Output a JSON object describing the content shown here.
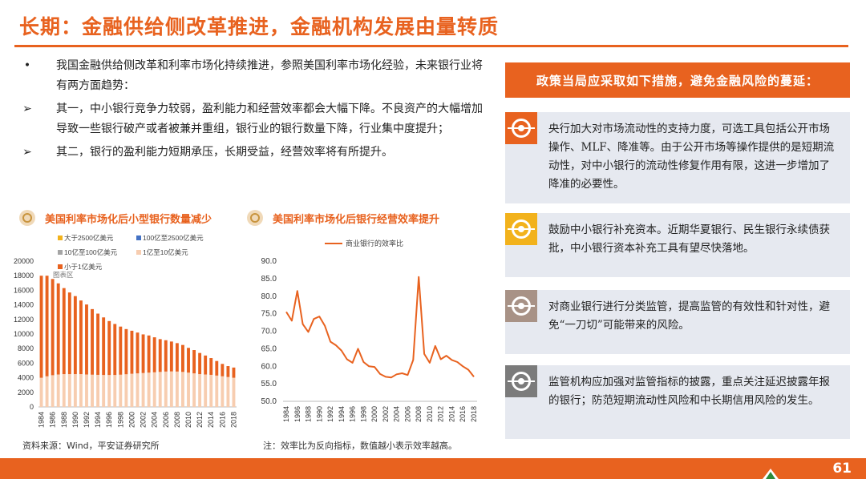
{
  "header": {
    "title": "长期：金融供给侧改革推进，金融机构发展由量转质"
  },
  "intro": [
    {
      "marker": "•",
      "text": "我国金融供给侧改革和利率市场化持续推进，参照美国利率市场化经验，未来银行业将有两方面趋势："
    },
    {
      "marker": "➢",
      "text": "其一，中小银行竞争力较弱，盈利能力和经营效率都会大幅下降。不良资产的大幅增加导致一些银行破产或者被兼并重组，银行业的银行数量下降，行业集中度提升；"
    },
    {
      "marker": "➢",
      "text": "其二，银行的盈利能力短期承压，长期受益，经营效率将有所提升。"
    }
  ],
  "chart1_title": "美国利率市场化后小型银行数量减少",
  "chart2_title": "美国利率市场化后银行经营效率提升",
  "source": "资料来源：Wind，平安证券研究所",
  "note": "注：效率比为反向指标，数值越小表示效率越高。",
  "colors": {
    "accent": "#E8621F",
    "bank_small": "#F7CDB0",
    "bank_mid": "#E8621F",
    "icon_orange": "#E8621F",
    "icon_gold": "#F2B21C",
    "icon_taupe": "#A89286",
    "icon_grey": "#7B7B7B"
  },
  "chart_data": [
    {
      "type": "bar",
      "stacked": true,
      "title": "",
      "ylim": [
        0,
        20000
      ],
      "yticks": [
        0,
        2000,
        4000,
        6000,
        8000,
        10000,
        12000,
        14000,
        16000,
        18000,
        20000
      ],
      "x": [
        1984,
        1985,
        1986,
        1987,
        1988,
        1989,
        1990,
        1991,
        1992,
        1993,
        1994,
        1995,
        1996,
        1997,
        1998,
        1999,
        2000,
        2001,
        2002,
        2003,
        2004,
        2005,
        2006,
        2007,
        2008,
        2009,
        2010,
        2011,
        2012,
        2013,
        2014,
        2015,
        2016,
        2017,
        2018
      ],
      "xticks": [
        "1984",
        "1986",
        "1988",
        "1990",
        "1992",
        "1994",
        "1996",
        "1998",
        "2000",
        "2002",
        "2004",
        "2006",
        "2008",
        "2010",
        "2012",
        "2014",
        "2016",
        "2018"
      ],
      "legend": [
        "大于2500亿美元",
        "100亿至2500亿美元",
        "10亿至100亿美元",
        "1亿至10亿美元",
        "小于1亿美元"
      ],
      "legend_overlay": "图表区",
      "series": [
        {
          "name": "1亿至10亿美元",
          "values": [
            4000,
            4200,
            4350,
            4450,
            4500,
            4500,
            4500,
            4500,
            4450,
            4420,
            4400,
            4380,
            4380,
            4380,
            4420,
            4480,
            4550,
            4600,
            4650,
            4700,
            4750,
            4800,
            4850,
            4870,
            4850,
            4800,
            4700,
            4600,
            4500,
            4450,
            4400,
            4300,
            4200,
            4100,
            4000
          ]
        },
        {
          "name": "小于1亿美元",
          "values": [
            14000,
            13800,
            13200,
            12500,
            11800,
            11200,
            10700,
            10100,
            9600,
            9000,
            8400,
            7900,
            7400,
            7000,
            6600,
            6200,
            5900,
            5600,
            5300,
            5100,
            4800,
            4500,
            4300,
            4100,
            3900,
            3700,
            3400,
            3200,
            2900,
            2600,
            2300,
            2000,
            1700,
            1500,
            1400
          ]
        }
      ]
    },
    {
      "type": "line",
      "title": "",
      "ylim": [
        50,
        90
      ],
      "yticks": [
        "50.0",
        "55.0",
        "60.0",
        "65.0",
        "70.0",
        "75.0",
        "80.0",
        "85.0",
        "90.0"
      ],
      "x": [
        1984,
        1985,
        1986,
        1987,
        1988,
        1989,
        1990,
        1991,
        1992,
        1993,
        1994,
        1995,
        1996,
        1997,
        1998,
        1999,
        2000,
        2001,
        2002,
        2003,
        2004,
        2005,
        2006,
        2007,
        2008,
        2009,
        2010,
        2011,
        2012,
        2013,
        2014,
        2015,
        2016,
        2017,
        2018
      ],
      "xticks": [
        "1984",
        "1986",
        "1988",
        "1990",
        "1992",
        "1994",
        "1996",
        "1998",
        "2000",
        "2002",
        "2004",
        "2006",
        "2008",
        "2010",
        "2012",
        "2014",
        "2016",
        "2018"
      ],
      "series": [
        {
          "name": "商业银行的效率比",
          "values": [
            75.5,
            73,
            81.5,
            72,
            69.8,
            73.5,
            74.2,
            71.5,
            67,
            66,
            64.5,
            62,
            61,
            65,
            61.2,
            60,
            59.8,
            57.8,
            57,
            56.8,
            57.7,
            58,
            57.5,
            61.8,
            85.5,
            63.5,
            61,
            65.8,
            62,
            63,
            61.8,
            61.2,
            60,
            59,
            57
          ]
        }
      ]
    }
  ],
  "measures_title": "政策当局应采取如下措施，避免金融风险的蔓延：",
  "measures": [
    {
      "icon": "target-icon",
      "text": "央行加大对市场流动性的支持力度，可选工具包括公开市场操作、MLF、降准等。由于公开市场等操作提供的是短期流动性，对中小银行的流动性修复作用有限，这进一步增加了降准的必要性。"
    },
    {
      "icon": "target-icon",
      "text": "鼓励中小银行补充资本。近期华夏银行、民生银行永续债获批，中小银行资本补充工具有望尽快落地。"
    },
    {
      "icon": "target-icon",
      "text": "对商业银行进行分类监管，提高监管的有效性和针对性，避免“一刀切”可能带来的风险。"
    },
    {
      "icon": "target-icon",
      "text": "监管机构应加强对监管指标的披露，重点关注延迟披露年报的银行；防范短期流动性风险和中长期信用风险的发生。"
    }
  ],
  "page_number": "61"
}
